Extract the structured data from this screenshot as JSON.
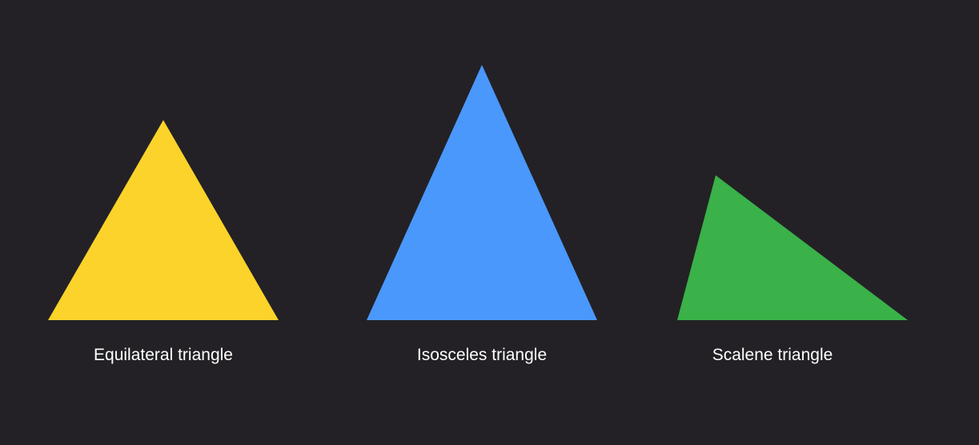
{
  "triangles": [
    {
      "id": "equilateral",
      "label": "Equilateral triangle",
      "color": "#fcd32a"
    },
    {
      "id": "isosceles",
      "label": "Isosceles triangle",
      "color": "#4a98fc"
    },
    {
      "id": "scalene",
      "label": "Scalene triangle",
      "color": "#3ab149"
    }
  ],
  "background_color": "#232125"
}
